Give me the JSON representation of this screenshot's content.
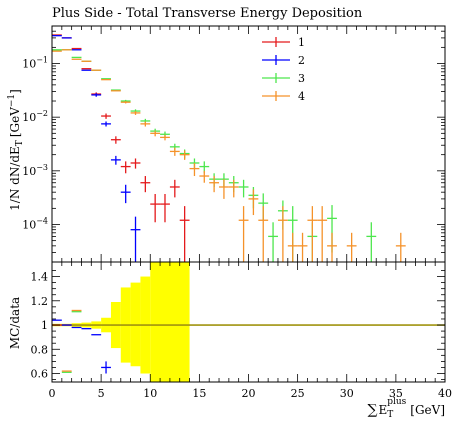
{
  "chart_data": [
    {
      "type": "scatter",
      "panel": "main",
      "title": "Plus Side - Total Transverse Energy Deposition",
      "ylabel": "1/N dN/dE_T [GeV^-1]",
      "ylabel_parts": {
        "main": "1/N dN/dE",
        "sub": "T",
        "unit": "[GeV",
        "sup": "−1",
        "close": "]"
      },
      "xlim": [
        0,
        40
      ],
      "ylim": [
        2e-05,
        0.5
      ],
      "yscale": "log",
      "x_ticks": [
        0,
        5,
        10,
        15,
        20,
        25,
        30,
        35,
        40
      ],
      "y_ticks": [
        {
          "value": 0.1,
          "base": "10",
          "exp": "−1"
        },
        {
          "value": 0.01,
          "base": "10",
          "exp": "−2"
        },
        {
          "value": 0.001,
          "base": "10",
          "exp": "−3"
        },
        {
          "value": 0.0001,
          "base": "10",
          "exp": "−4"
        }
      ],
      "legend_position": "top-right",
      "series": [
        {
          "name": "1",
          "color": "#e41a1c",
          "points": [
            {
              "x": 0.5,
              "y": 0.34
            },
            {
              "x": 1.5,
              "y": 0.3
            },
            {
              "x": 2.5,
              "y": 0.19
            },
            {
              "x": 3.5,
              "y": 0.08
            },
            {
              "x": 4.5,
              "y": 0.027,
              "err": 0.002
            },
            {
              "x": 5.5,
              "y": 0.0105,
              "err": 0.0012
            },
            {
              "x": 6.5,
              "y": 0.0038,
              "err": 0.0006
            },
            {
              "x": 7.5,
              "y": 0.0012,
              "err": 0.0003
            },
            {
              "x": 8.5,
              "y": 0.0014,
              "err": 0.0003
            },
            {
              "x": 9.5,
              "y": 0.0006,
              "err": 0.0002
            },
            {
              "x": 10.5,
              "y": 0.00024,
              "err": 0.00013
            },
            {
              "x": 11.5,
              "y": 0.00024,
              "err": 0.00013
            },
            {
              "x": 12.5,
              "y": 0.0005,
              "err": 0.00018
            },
            {
              "x": 13.5,
              "y": 0.00012,
              "err": 0.0001
            }
          ]
        },
        {
          "name": "2",
          "color": "#0000ff",
          "points": [
            {
              "x": 0.5,
              "y": 0.33
            },
            {
              "x": 1.5,
              "y": 0.3
            },
            {
              "x": 2.5,
              "y": 0.18
            },
            {
              "x": 3.5,
              "y": 0.075
            },
            {
              "x": 4.5,
              "y": 0.026,
              "err": 0.002
            },
            {
              "x": 5.5,
              "y": 0.0075,
              "err": 0.0008
            },
            {
              "x": 6.5,
              "y": 0.0016,
              "err": 0.0003
            },
            {
              "x": 7.5,
              "y": 0.0004,
              "err": 0.00015
            },
            {
              "x": 8.5,
              "y": 8e-05,
              "err": 6e-05
            }
          ]
        },
        {
          "name": "3",
          "color": "#4de64d",
          "points": [
            {
              "x": 0.5,
              "y": 0.18
            },
            {
              "x": 1.5,
              "y": 0.18
            },
            {
              "x": 2.5,
              "y": 0.13
            },
            {
              "x": 3.5,
              "y": 0.11
            },
            {
              "x": 4.5,
              "y": 0.075
            },
            {
              "x": 5.5,
              "y": 0.052
            },
            {
              "x": 6.5,
              "y": 0.032
            },
            {
              "x": 7.5,
              "y": 0.02,
              "err": 0.001
            },
            {
              "x": 8.5,
              "y": 0.013,
              "err": 0.001
            },
            {
              "x": 9.5,
              "y": 0.0085,
              "err": 0.0008
            },
            {
              "x": 10.5,
              "y": 0.0055,
              "err": 0.0006
            },
            {
              "x": 11.5,
              "y": 0.0048,
              "err": 0.0006
            },
            {
              "x": 12.5,
              "y": 0.0028,
              "err": 0.0004
            },
            {
              "x": 13.5,
              "y": 0.0021,
              "err": 0.0004
            },
            {
              "x": 14.5,
              "y": 0.0014,
              "err": 0.0003
            },
            {
              "x": 15.5,
              "y": 0.0012,
              "err": 0.0003
            },
            {
              "x": 16.5,
              "y": 0.0007,
              "err": 0.0002
            },
            {
              "x": 17.5,
              "y": 0.0007,
              "err": 0.0002
            },
            {
              "x": 18.5,
              "y": 0.0006,
              "err": 0.0002
            },
            {
              "x": 19.5,
              "y": 0.0005,
              "err": 0.00018
            },
            {
              "x": 20.5,
              "y": 0.00035,
              "err": 0.00015
            },
            {
              "x": 21.5,
              "y": 0.00025,
              "err": 0.00013
            },
            {
              "x": 22.5,
              "y": 6e-05,
              "err": 5e-05
            },
            {
              "x": 23.5,
              "y": 0.00018,
              "err": 0.0001
            },
            {
              "x": 24.5,
              "y": 0.00012,
              "err": 0.0001
            },
            {
              "x": 26.5,
              "y": 6e-05,
              "err": 5e-05
            },
            {
              "x": 28.5,
              "y": 0.00013,
              "err": 0.0001
            },
            {
              "x": 32.5,
              "y": 6e-05,
              "err": 5e-05
            }
          ]
        },
        {
          "name": "4",
          "color": "#f5922a",
          "points": [
            {
              "x": 0.5,
              "y": 0.17
            },
            {
              "x": 1.5,
              "y": 0.18
            },
            {
              "x": 2.5,
              "y": 0.12
            },
            {
              "x": 3.5,
              "y": 0.11
            },
            {
              "x": 4.5,
              "y": 0.075
            },
            {
              "x": 5.5,
              "y": 0.05
            },
            {
              "x": 6.5,
              "y": 0.031
            },
            {
              "x": 7.5,
              "y": 0.019,
              "err": 0.001
            },
            {
              "x": 8.5,
              "y": 0.012,
              "err": 0.001
            },
            {
              "x": 9.5,
              "y": 0.0075,
              "err": 0.0008
            },
            {
              "x": 10.5,
              "y": 0.005,
              "err": 0.0006
            },
            {
              "x": 11.5,
              "y": 0.0042,
              "err": 0.0005
            },
            {
              "x": 12.5,
              "y": 0.0023,
              "err": 0.0004
            },
            {
              "x": 13.5,
              "y": 0.002,
              "err": 0.0004
            },
            {
              "x": 14.5,
              "y": 0.0011,
              "err": 0.0003
            },
            {
              "x": 15.5,
              "y": 0.0008,
              "err": 0.0002
            },
            {
              "x": 16.5,
              "y": 0.0006,
              "err": 0.0002
            },
            {
              "x": 17.5,
              "y": 0.0005,
              "err": 0.0002
            },
            {
              "x": 18.5,
              "y": 0.0005,
              "err": 0.00018
            },
            {
              "x": 19.5,
              "y": 0.00012,
              "err": 0.0001
            },
            {
              "x": 20.5,
              "y": 0.0003,
              "err": 0.00015
            },
            {
              "x": 21.5,
              "y": 0.00012,
              "err": 0.0001
            },
            {
              "x": 23.5,
              "y": 0.00012,
              "err": 0.0001
            },
            {
              "x": 24.5,
              "y": 4e-05,
              "err": 3e-05
            },
            {
              "x": 25.5,
              "y": 4e-05,
              "err": 3e-05
            },
            {
              "x": 26.5,
              "y": 0.00012,
              "err": 0.0001
            },
            {
              "x": 27.5,
              "y": 0.00012,
              "err": 0.0001
            },
            {
              "x": 28.5,
              "y": 4e-05,
              "err": 3e-05
            },
            {
              "x": 30.5,
              "y": 4e-05,
              "err": 3e-05
            },
            {
              "x": 35.5,
              "y": 4e-05,
              "err": 3e-05
            }
          ]
        }
      ]
    },
    {
      "type": "scatter",
      "panel": "ratio",
      "ylabel": "MC/data",
      "xlabel": "ΣE_T^plus [GeV]",
      "xlabel_parts": {
        "sigma": "∑",
        "main": "E",
        "sub": "T",
        "sup": "plus",
        "unit": "[GeV]"
      },
      "xlim": [
        0,
        40
      ],
      "ylim": [
        0.53,
        1.52
      ],
      "y_ticks": [
        "0.6",
        "0.8",
        "1",
        "1.2",
        "1.4"
      ],
      "x_ticks": [
        0,
        5,
        10,
        15,
        20,
        25,
        30,
        35,
        40
      ],
      "reference_line": 1.0,
      "reference_color": "#a09410",
      "uncertainty_band": {
        "color": "#ffff00",
        "bins": [
          {
            "x0": 0,
            "x1": 1,
            "lo": 0.99,
            "hi": 1.01
          },
          {
            "x0": 1,
            "x1": 2,
            "lo": 0.99,
            "hi": 1.01
          },
          {
            "x0": 2,
            "x1": 3,
            "lo": 0.985,
            "hi": 1.015
          },
          {
            "x0": 3,
            "x1": 4,
            "lo": 0.98,
            "hi": 1.02
          },
          {
            "x0": 4,
            "x1": 5,
            "lo": 0.97,
            "hi": 1.03
          },
          {
            "x0": 5,
            "x1": 6,
            "lo": 0.94,
            "hi": 1.06
          },
          {
            "x0": 6,
            "x1": 7,
            "lo": 0.81,
            "hi": 1.19
          },
          {
            "x0": 7,
            "x1": 8,
            "lo": 0.69,
            "hi": 1.31
          },
          {
            "x0": 8,
            "x1": 9,
            "lo": 0.66,
            "hi": 1.35
          },
          {
            "x0": 9,
            "x1": 10,
            "lo": 0.6,
            "hi": 1.4
          },
          {
            "x0": 10,
            "x1": 14,
            "lo": 0.53,
            "hi": 1.52
          }
        ]
      },
      "series": [
        {
          "name": "1",
          "color": "#e41a1c",
          "points": [
            {
              "x": 0.5,
              "y": 1.0
            },
            {
              "x": 1.5,
              "y": 1.0
            }
          ]
        },
        {
          "name": "2",
          "color": "#0000ff",
          "points": [
            {
              "x": 0.5,
              "y": 1.04
            },
            {
              "x": 1.5,
              "y": 1.0
            },
            {
              "x": 2.5,
              "y": 0.98
            },
            {
              "x": 3.5,
              "y": 0.97
            },
            {
              "x": 4.5,
              "y": 0.92
            },
            {
              "x": 5.5,
              "y": 0.65,
              "err": 0.05
            }
          ]
        },
        {
          "name": "3",
          "color": "#4de64d",
          "points": [
            {
              "x": 1.5,
              "y": 0.61
            },
            {
              "x": 2.5,
              "y": 1.11
            }
          ]
        },
        {
          "name": "4",
          "color": "#f5922a",
          "points": [
            {
              "x": 1.5,
              "y": 0.62
            },
            {
              "x": 2.5,
              "y": 1.12
            }
          ]
        }
      ]
    }
  ]
}
